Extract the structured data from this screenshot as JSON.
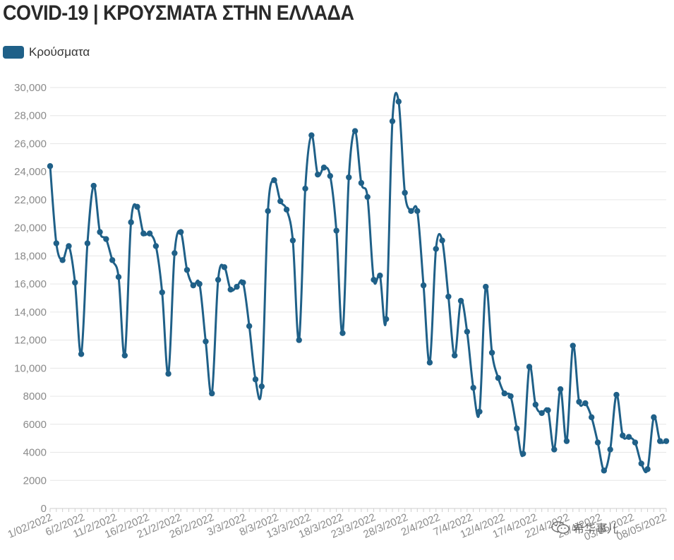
{
  "title": "COVID-19 | ΚΡΟΥΣΜΑΤΑ ΣΤΗΝ ΕΛΛΑΔΑ",
  "legend": {
    "label": "Κρούσματα",
    "color": "#1f6088"
  },
  "watermark": {
    "text": "希华事儿",
    "icon": "wechat-icon"
  },
  "chart_data": {
    "type": "line",
    "title": "COVID-19 | ΚΡΟΥΣΜΑΤΑ ΣΤΗΝ ΕΛΛΑΔΑ",
    "xlabel": "",
    "ylabel": "",
    "ylim": [
      0,
      30000
    ],
    "yticks": [
      0,
      2000,
      4000,
      6000,
      8000,
      10000,
      12000,
      14000,
      16000,
      18000,
      20000,
      22000,
      24000,
      26000,
      28000,
      30000
    ],
    "ytick_labels": [
      "0",
      "2000",
      "4000",
      "6000",
      "8000",
      "10,000",
      "12,000",
      "14,000",
      "16,000",
      "18,000",
      "20,000",
      "22,000",
      "24,000",
      "26,000",
      "28,000",
      "30,000"
    ],
    "xtick_labels": [
      "1/02/2022",
      "6/2/2022",
      "11/2/2022",
      "16/2/2022",
      "21/2/2022",
      "26/2/2022",
      "3/3/2022",
      "8/3/2022",
      "13/3/2022",
      "18/3/2022",
      "23/3/2022",
      "28/3/2022",
      "2/4/2022",
      "7/4/2022",
      "12/4/2022",
      "17/4/2022",
      "22/4/2022",
      "28/4/2022",
      "03/05/2022",
      "08/05/2022"
    ],
    "grid": true,
    "legend_position": "top-left",
    "series": [
      {
        "name": "Κρούσματα",
        "color": "#1f6088",
        "values": [
          24400,
          18900,
          17700,
          18700,
          16100,
          11000,
          18900,
          23000,
          19700,
          19200,
          17700,
          16500,
          10900,
          20400,
          21500,
          19600,
          19600,
          18700,
          15400,
          9600,
          18200,
          19700,
          17000,
          15900,
          16000,
          11900,
          8200,
          16300,
          17200,
          15600,
          15800,
          16100,
          13000,
          9200,
          8700,
          21200,
          23400,
          21900,
          21300,
          19100,
          12000,
          22800,
          26600,
          23800,
          24300,
          23700,
          19800,
          12500,
          23600,
          26900,
          23200,
          22200,
          16300,
          16600,
          13500,
          27600,
          29000,
          22500,
          21200,
          21200,
          15900,
          10400,
          18500,
          19100,
          15100,
          10900,
          14800,
          12600,
          8600,
          6900,
          15800,
          11100,
          9300,
          8200,
          8000,
          5700,
          3900,
          10100,
          7400,
          6800,
          7000,
          4200,
          8500,
          4800,
          11600,
          7600,
          7500,
          6500,
          4700,
          2700,
          4200,
          8100,
          5200,
          5100,
          4700,
          3200,
          2800,
          6500,
          4800,
          4800
        ]
      }
    ]
  }
}
